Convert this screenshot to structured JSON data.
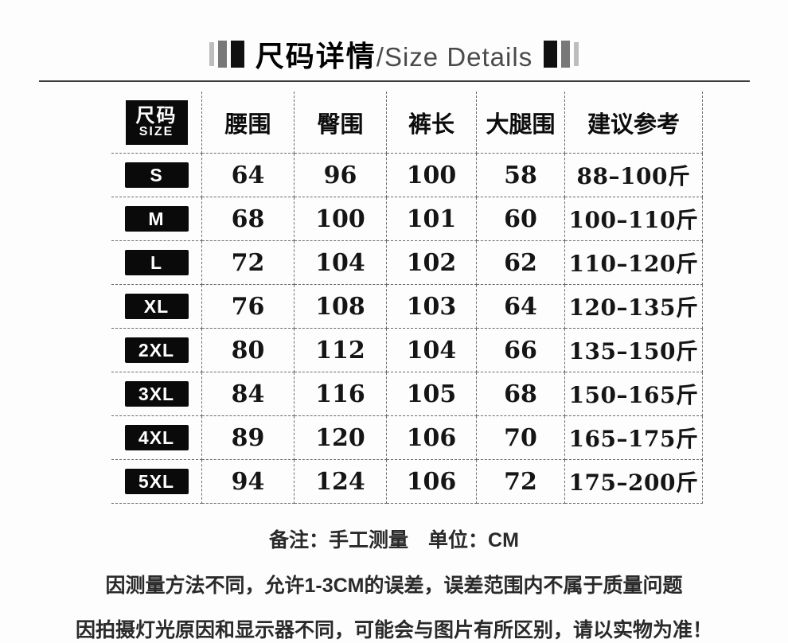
{
  "title": {
    "cn": "尺码详情",
    "en": "/Size Details",
    "decor_left_icon": "bars-left-icon",
    "decor_right_icon": "bars-right-icon",
    "accent_color": "#000000"
  },
  "table": {
    "size_header": {
      "cn": "尺码",
      "en": "SIZE"
    },
    "columns": [
      "腰围",
      "臀围",
      "裤长",
      "大腿围",
      "建议参考"
    ],
    "rows": [
      {
        "size": "S",
        "waist": "64",
        "hip": "96",
        "pants_length": "100",
        "thigh": "58",
        "weight_range": "88–100斤"
      },
      {
        "size": "M",
        "waist": "68",
        "hip": "100",
        "pants_length": "101",
        "thigh": "60",
        "weight_range": "100–110斤"
      },
      {
        "size": "L",
        "waist": "72",
        "hip": "104",
        "pants_length": "102",
        "thigh": "62",
        "weight_range": "110–120斤"
      },
      {
        "size": "XL",
        "waist": "76",
        "hip": "108",
        "pants_length": "103",
        "thigh": "64",
        "weight_range": "120–135斤"
      },
      {
        "size": "2XL",
        "waist": "80",
        "hip": "112",
        "pants_length": "104",
        "thigh": "66",
        "weight_range": "135–150斤"
      },
      {
        "size": "3XL",
        "waist": "84",
        "hip": "116",
        "pants_length": "105",
        "thigh": "68",
        "weight_range": "150–165斤"
      },
      {
        "size": "4XL",
        "waist": "89",
        "hip": "120",
        "pants_length": "106",
        "thigh": "70",
        "weight_range": "165–175斤"
      },
      {
        "size": "5XL",
        "waist": "94",
        "hip": "124",
        "pants_length": "106",
        "thigh": "72",
        "weight_range": "175–200斤"
      }
    ],
    "badge_bg": "#0a0a0a",
    "badge_text_color": "#ffffff"
  },
  "notes": {
    "measure": "备注：手工测量　单位：CM",
    "tolerance": "因测量方法不同，允许1-3CM的误差，误差范围内不属于质量问题",
    "display": "因拍摄灯光原因和显示器不同，可能会与图片有所区别，请以实物为准！"
  }
}
